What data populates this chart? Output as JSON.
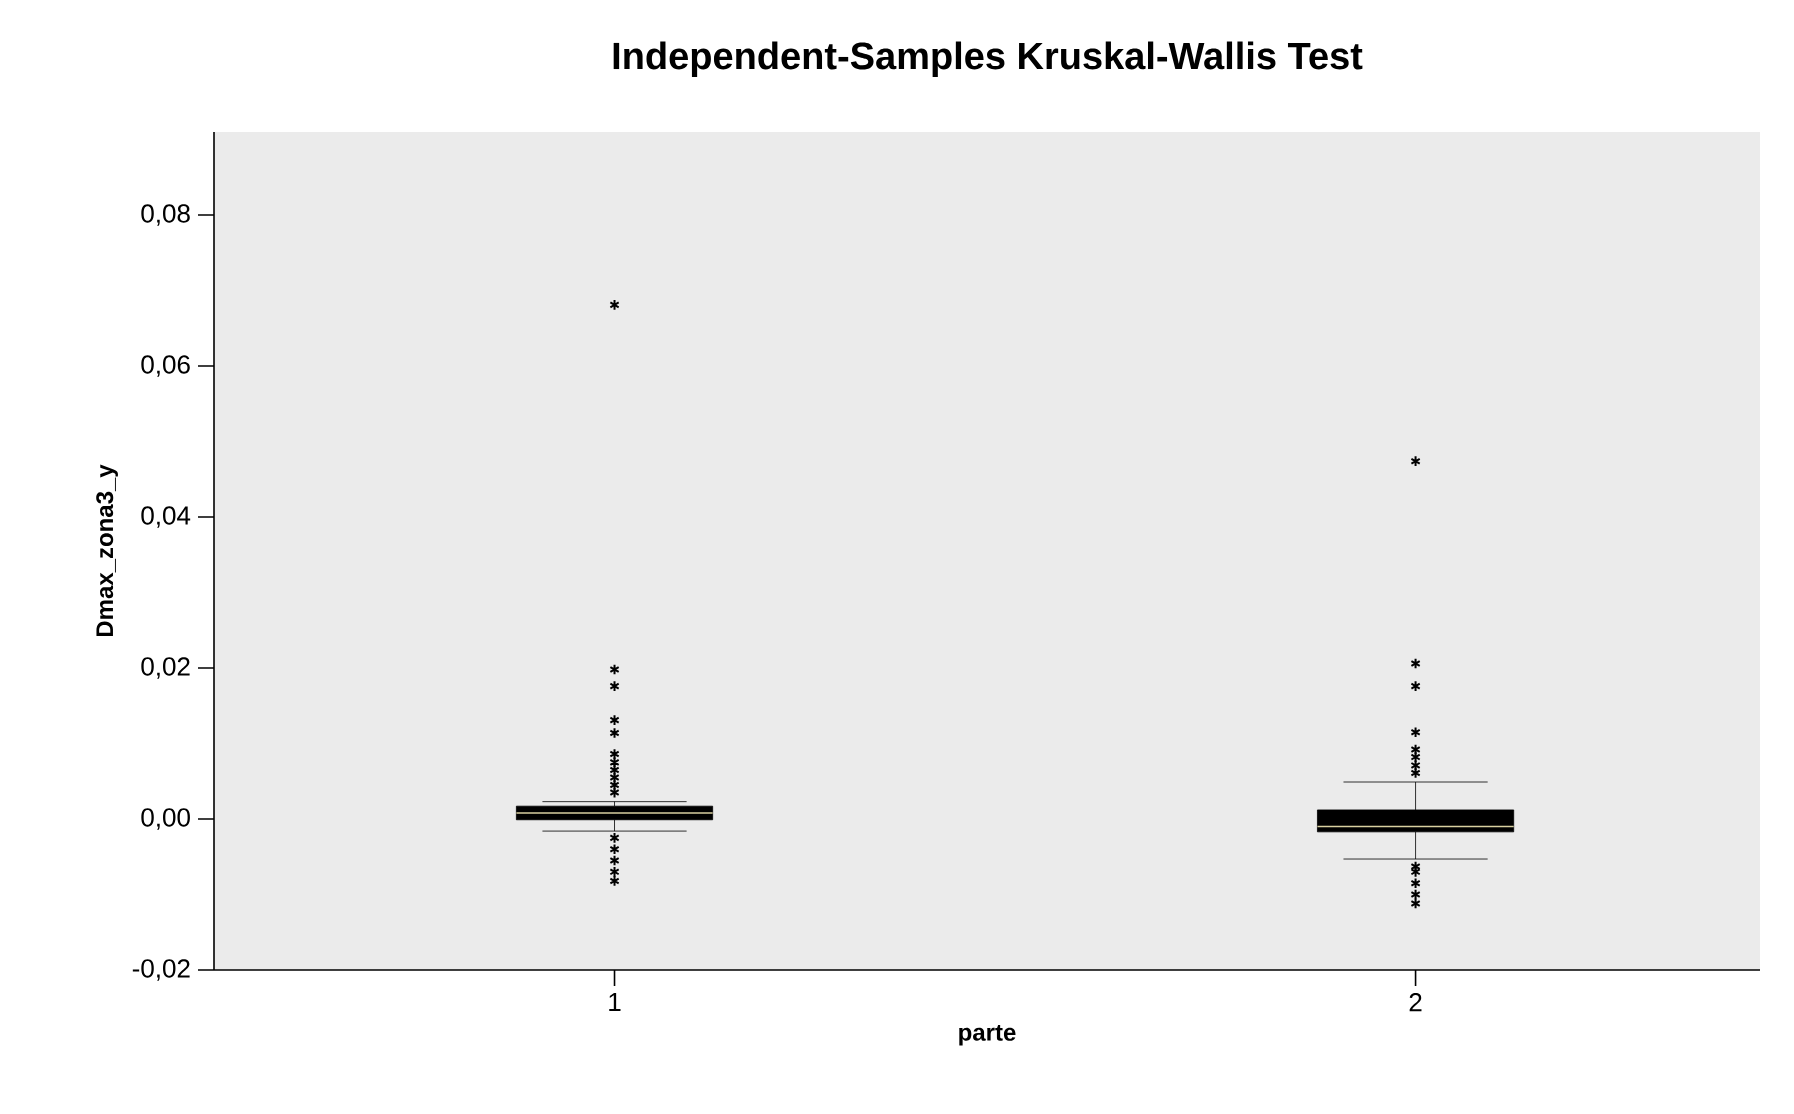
{
  "chart_data": {
    "type": "box",
    "title": "Independent-Samples Kruskal-Wallis Test",
    "xlabel": "parte",
    "ylabel": "Dmax_zona3_y",
    "categories": [
      "1",
      "2"
    ],
    "series": [
      {
        "color": "#000000",
        "boxes": [
          {
            "low": -0.0016,
            "q1": -0.0001,
            "median": 0.0008,
            "q3": 0.0017,
            "high": 0.0023,
            "outliers": [
              0.0681,
              0.0198,
              0.0176,
              0.0131,
              0.0114,
              0.0086,
              0.0075,
              0.0065,
              0.0055,
              0.0045,
              0.0035,
              -0.0025,
              -0.004,
              -0.0055,
              -0.007,
              -0.0082
            ]
          },
          {
            "low": -0.0053,
            "q1": -0.0017,
            "median": -0.001,
            "q3": 0.0012,
            "high": 0.0049,
            "outliers": [
              0.0474,
              0.0206,
              0.0176,
              0.0115,
              0.0092,
              0.0082,
              0.0071,
              0.0061,
              -0.0063,
              -0.007,
              -0.0085,
              -0.01,
              -0.0112
            ]
          }
        ]
      }
    ],
    "ylim": [
      -0.02,
      0.091
    ],
    "yticks": [
      {
        "value": -0.02,
        "label": "-0,02"
      },
      {
        "value": 0.0,
        "label": "0,00"
      },
      {
        "value": 0.02,
        "label": "0,02"
      },
      {
        "value": 0.04,
        "label": "0,04"
      },
      {
        "value": 0.06,
        "label": "0,06"
      },
      {
        "value": 0.08,
        "label": "0,08"
      }
    ],
    "marker": "star",
    "grid": false
  }
}
